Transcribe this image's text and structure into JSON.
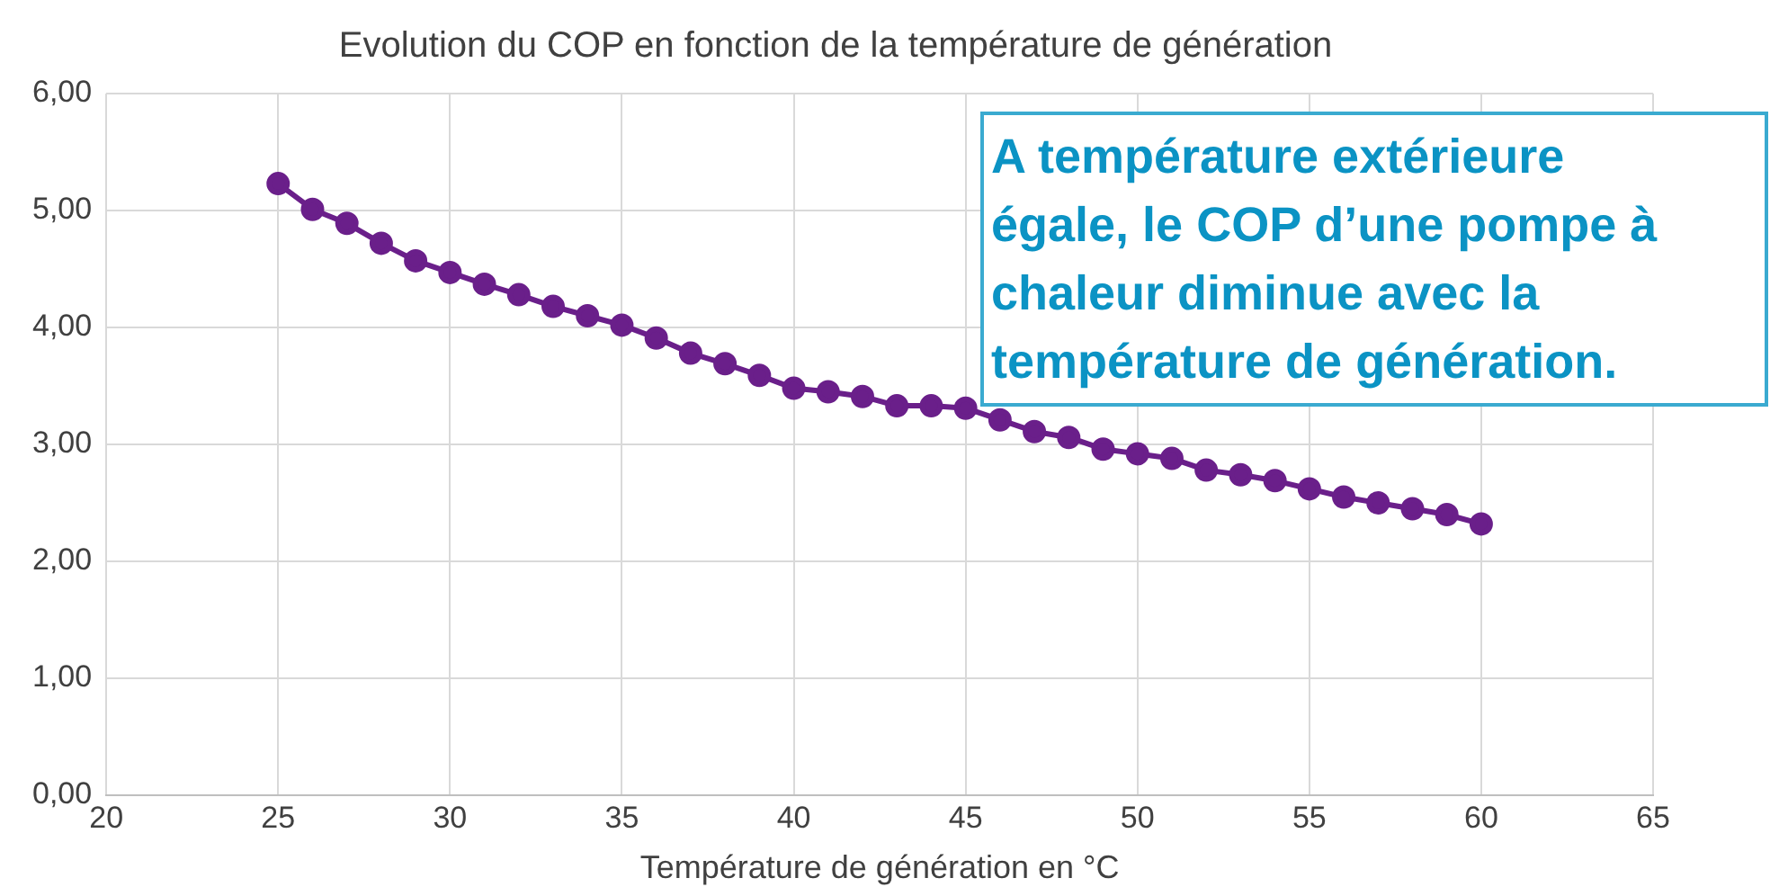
{
  "chart_data": {
    "type": "line",
    "title": "Evolution du COP en fonction de la température de génération",
    "xlabel": "Température de génération en °C",
    "annotations": [
      "A température extérieure égale, le COP d’une pompe à chaleur diminue avec la température de génération."
    ],
    "x": [
      25,
      26,
      27,
      28,
      29,
      30,
      31,
      32,
      33,
      34,
      35,
      36,
      37,
      38,
      39,
      40,
      41,
      42,
      43,
      44,
      45,
      46,
      47,
      48,
      49,
      50,
      51,
      52,
      53,
      54,
      55,
      56,
      57,
      58,
      59,
      60
    ],
    "series": [
      {
        "color": "#6a1f8a",
        "values": [
          5.23,
          5.01,
          4.89,
          4.72,
          4.57,
          4.47,
          4.37,
          4.28,
          4.18,
          4.1,
          4.02,
          3.91,
          3.78,
          3.69,
          3.59,
          3.48,
          3.45,
          3.41,
          3.33,
          3.33,
          3.31,
          3.21,
          3.11,
          3.06,
          2.96,
          2.92,
          2.88,
          2.78,
          2.74,
          2.69,
          2.62,
          2.55,
          2.5,
          2.45,
          2.4,
          2.32
        ]
      }
    ],
    "xlim": [
      20,
      65
    ],
    "xticks": [
      20,
      25,
      30,
      35,
      40,
      45,
      50,
      55,
      60,
      65
    ],
    "ylim": [
      0,
      6
    ],
    "yticks": [
      {
        "value": 0,
        "label": "0,00"
      },
      {
        "value": 1,
        "label": "1,00"
      },
      {
        "value": 2,
        "label": "2,00"
      },
      {
        "value": 3,
        "label": "3,00"
      },
      {
        "value": 4,
        "label": "4,00"
      },
      {
        "value": 5,
        "label": "5,00"
      },
      {
        "value": 6,
        "label": "6,00"
      }
    ],
    "grid": true,
    "legend": false,
    "marker": "circle",
    "line_style": "solid"
  }
}
